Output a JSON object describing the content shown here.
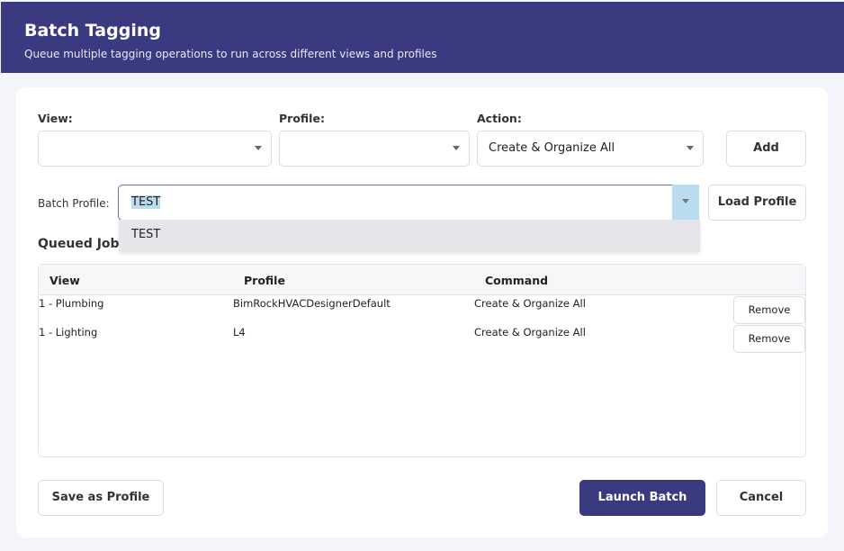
{
  "header": {
    "title": "Batch Tagging",
    "subtitle": "Queue multiple tagging operations to run across different views and profiles"
  },
  "form": {
    "view_label": "View:",
    "view_value": "",
    "profile_label": "Profile:",
    "profile_value": "",
    "action_label": "Action:",
    "action_value": "Create & Organize All",
    "add_label": "Add",
    "batch_profile_label": "Batch Profile:",
    "batch_profile_value": "TEST",
    "batch_profile_options": [
      "TEST"
    ],
    "load_profile_label": "Load Profile"
  },
  "queue": {
    "title": "Queued Jobs",
    "columns": [
      "View",
      "Profile",
      "Command"
    ],
    "rows": [
      {
        "view": "1 - Plumbing",
        "profile": "BimRockHVACDesignerDefault",
        "command": "Create & Organize All",
        "remove": "Remove"
      },
      {
        "view": "1 - Lighting",
        "profile": "L4",
        "command": "Create & Organize All",
        "remove": "Remove"
      }
    ]
  },
  "footer": {
    "save_profile": "Save as Profile",
    "launch": "Launch Batch",
    "cancel": "Cancel"
  },
  "colors": {
    "accent": "#393a80",
    "selection": "#b9dcf0"
  }
}
